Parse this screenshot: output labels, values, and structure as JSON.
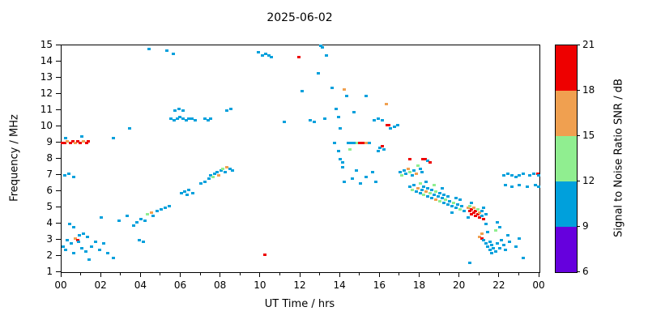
{
  "title": "2025-06-02",
  "chart_data": {
    "type": "scatter",
    "title": "2025-06-02",
    "xlabel": "UT Time / hrs",
    "ylabel": "Frequency / MHz",
    "xlim": [
      0,
      24
    ],
    "ylim": [
      1,
      15
    ],
    "grid": false,
    "x_ticks": {
      "values": [
        0,
        2,
        4,
        6,
        8,
        10,
        12,
        14,
        16,
        18,
        20,
        22,
        24
      ],
      "labels": [
        "00",
        "02",
        "04",
        "06",
        "08",
        "10",
        "12",
        "14",
        "16",
        "18",
        "20",
        "22",
        "00"
      ]
    },
    "y_ticks": [
      1,
      2,
      3,
      4,
      5,
      6,
      7,
      8,
      9,
      10,
      11,
      12,
      13,
      14,
      15
    ],
    "colorbar": {
      "label": "Signal to Noise Ratio SNR / dB",
      "tick_values": [
        6,
        9,
        12,
        15,
        18,
        21
      ],
      "range": [
        6,
        21
      ],
      "segments": [
        {
          "range": [
            6,
            9
          ],
          "color": "#6600DD"
        },
        {
          "range": [
            9,
            12
          ],
          "color": "#00A0DC"
        },
        {
          "range": [
            12,
            15
          ],
          "color": "#90EE90"
        },
        {
          "range": [
            15,
            18
          ],
          "color": "#F0A050"
        },
        {
          "range": [
            18,
            21
          ],
          "color": "#EE0000"
        }
      ]
    },
    "points": [
      [
        0.05,
        9.0,
        20
      ],
      [
        0.15,
        9.0,
        20
      ],
      [
        0.3,
        9.1,
        16
      ],
      [
        0.45,
        9.0,
        20
      ],
      [
        0.55,
        9.1,
        20
      ],
      [
        0.7,
        9.0,
        16
      ],
      [
        0.8,
        9.1,
        20
      ],
      [
        0.95,
        9.0,
        20
      ],
      [
        1.1,
        9.1,
        16
      ],
      [
        1.25,
        9.0,
        20
      ],
      [
        1.35,
        9.1,
        20
      ],
      [
        0.2,
        9.3,
        10
      ],
      [
        1.0,
        9.4,
        10
      ],
      [
        0.1,
        2.6,
        10
      ],
      [
        0.2,
        2.4,
        10
      ],
      [
        0.3,
        3.0,
        10
      ],
      [
        0.5,
        2.8,
        10
      ],
      [
        0.6,
        2.2,
        10
      ],
      [
        0.7,
        3.1,
        16
      ],
      [
        0.8,
        3.0,
        20
      ],
      [
        0.85,
        2.9,
        10
      ],
      [
        0.9,
        3.3,
        10
      ],
      [
        1.0,
        2.5,
        10
      ],
      [
        1.1,
        3.4,
        10
      ],
      [
        1.2,
        2.3,
        10
      ],
      [
        1.3,
        3.2,
        10
      ],
      [
        1.5,
        2.6,
        10
      ],
      [
        1.7,
        2.9,
        10
      ],
      [
        1.9,
        2.4,
        10
      ],
      [
        2.1,
        2.8,
        10
      ],
      [
        2.3,
        2.2,
        10
      ],
      [
        0.4,
        4.0,
        10
      ],
      [
        0.6,
        3.8,
        10
      ],
      [
        1.4,
        1.8,
        10
      ],
      [
        2.6,
        1.9,
        10
      ],
      [
        0.15,
        7.0,
        10
      ],
      [
        0.35,
        7.1,
        10
      ],
      [
        0.6,
        6.9,
        10
      ],
      [
        2.6,
        9.3,
        10
      ],
      [
        3.4,
        9.9,
        10
      ],
      [
        2.0,
        4.4,
        10
      ],
      [
        2.9,
        4.2,
        10
      ],
      [
        3.3,
        4.5,
        10
      ],
      [
        3.6,
        3.9,
        10
      ],
      [
        3.8,
        4.1,
        10
      ],
      [
        4.0,
        4.3,
        10
      ],
      [
        4.2,
        4.2,
        10
      ],
      [
        4.3,
        4.6,
        13
      ],
      [
        4.5,
        4.7,
        16
      ],
      [
        4.6,
        4.5,
        10
      ],
      [
        4.8,
        4.8,
        10
      ],
      [
        5.0,
        4.9,
        10
      ],
      [
        5.2,
        5.0,
        10
      ],
      [
        5.4,
        5.1,
        10
      ],
      [
        3.9,
        3.0,
        10
      ],
      [
        4.1,
        2.9,
        10
      ],
      [
        5.5,
        10.5,
        10
      ],
      [
        5.65,
        10.4,
        10
      ],
      [
        5.8,
        10.5,
        10
      ],
      [
        5.95,
        10.6,
        10
      ],
      [
        6.1,
        10.5,
        10
      ],
      [
        6.25,
        10.4,
        10
      ],
      [
        6.4,
        10.5,
        10
      ],
      [
        6.55,
        10.5,
        10
      ],
      [
        6.7,
        10.4,
        10
      ],
      [
        7.2,
        10.5,
        10
      ],
      [
        7.35,
        10.4,
        10
      ],
      [
        7.5,
        10.5,
        10
      ],
      [
        5.7,
        11.0,
        10
      ],
      [
        5.9,
        11.1,
        10
      ],
      [
        6.1,
        11.0,
        10
      ],
      [
        5.3,
        14.7,
        10
      ],
      [
        5.6,
        14.5,
        10
      ],
      [
        4.4,
        14.8,
        10
      ],
      [
        6.0,
        5.9,
        10
      ],
      [
        6.2,
        6.0,
        10
      ],
      [
        6.4,
        6.1,
        10
      ],
      [
        6.6,
        5.9,
        10
      ],
      [
        6.3,
        5.8,
        10
      ],
      [
        7.0,
        6.5,
        10
      ],
      [
        7.2,
        6.6,
        10
      ],
      [
        7.4,
        6.8,
        10
      ],
      [
        7.5,
        7.0,
        10
      ],
      [
        7.6,
        6.9,
        13
      ],
      [
        7.7,
        7.1,
        10
      ],
      [
        7.8,
        7.2,
        10
      ],
      [
        7.9,
        7.0,
        16
      ],
      [
        8.0,
        7.3,
        10
      ],
      [
        8.1,
        7.4,
        13
      ],
      [
        8.2,
        7.2,
        10
      ],
      [
        8.3,
        7.5,
        16
      ],
      [
        8.45,
        7.4,
        10
      ],
      [
        8.6,
        7.3,
        10
      ],
      [
        8.3,
        11.0,
        10
      ],
      [
        8.5,
        11.1,
        10
      ],
      [
        9.9,
        14.6,
        10
      ],
      [
        10.1,
        14.4,
        10
      ],
      [
        10.25,
        14.5,
        10
      ],
      [
        10.4,
        14.4,
        10
      ],
      [
        10.55,
        14.3,
        10
      ],
      [
        11.9,
        14.3,
        20
      ],
      [
        10.2,
        2.1,
        20
      ],
      [
        11.2,
        10.3,
        10
      ],
      [
        12.1,
        12.2,
        10
      ],
      [
        12.5,
        10.4,
        10
      ],
      [
        12.7,
        10.3,
        10
      ],
      [
        13.0,
        15.0,
        10
      ],
      [
        13.1,
        14.9,
        10
      ],
      [
        13.3,
        14.4,
        10
      ],
      [
        12.9,
        13.3,
        10
      ],
      [
        13.2,
        10.5,
        10
      ],
      [
        13.6,
        12.4,
        10
      ],
      [
        13.8,
        11.1,
        10
      ],
      [
        13.9,
        10.6,
        10
      ],
      [
        14.0,
        9.9,
        10
      ],
      [
        14.0,
        8.0,
        10
      ],
      [
        14.1,
        7.8,
        10
      ],
      [
        14.1,
        7.5,
        10
      ],
      [
        14.2,
        12.3,
        16
      ],
      [
        14.3,
        11.9,
        10
      ],
      [
        13.7,
        9.0,
        10
      ],
      [
        13.9,
        8.5,
        10
      ],
      [
        14.7,
        10.9,
        10
      ],
      [
        15.3,
        11.9,
        10
      ],
      [
        14.4,
        9.0,
        10
      ],
      [
        14.55,
        9.0,
        10
      ],
      [
        14.7,
        9.0,
        10
      ],
      [
        14.85,
        9.0,
        13
      ],
      [
        14.95,
        9.0,
        20
      ],
      [
        15.05,
        9.0,
        20
      ],
      [
        15.15,
        9.0,
        20
      ],
      [
        15.3,
        9.0,
        16
      ],
      [
        15.45,
        9.0,
        10
      ],
      [
        14.5,
        8.6,
        13
      ],
      [
        14.2,
        6.6,
        10
      ],
      [
        14.6,
        6.8,
        10
      ],
      [
        15.0,
        6.5,
        10
      ],
      [
        15.3,
        6.9,
        10
      ],
      [
        15.8,
        6.6,
        10
      ],
      [
        14.8,
        7.3,
        10
      ],
      [
        15.6,
        7.2,
        10
      ],
      [
        15.7,
        10.4,
        10
      ],
      [
        15.9,
        10.5,
        10
      ],
      [
        16.1,
        10.4,
        10
      ],
      [
        16.35,
        10.1,
        20
      ],
      [
        16.45,
        10.1,
        20
      ],
      [
        16.0,
        8.7,
        10
      ],
      [
        16.1,
        8.8,
        20
      ],
      [
        16.2,
        8.6,
        10
      ],
      [
        15.9,
        8.5,
        10
      ],
      [
        16.5,
        9.9,
        10
      ],
      [
        16.7,
        10.0,
        10
      ],
      [
        16.9,
        10.1,
        10
      ],
      [
        16.3,
        11.4,
        16
      ],
      [
        17.0,
        7.2,
        10
      ],
      [
        17.1,
        7.0,
        13
      ],
      [
        17.2,
        7.3,
        10
      ],
      [
        17.3,
        7.1,
        10
      ],
      [
        17.4,
        7.4,
        16
      ],
      [
        17.5,
        8.0,
        20
      ],
      [
        17.5,
        7.2,
        13
      ],
      [
        17.6,
        7.0,
        10
      ],
      [
        17.7,
        7.3,
        10
      ],
      [
        17.8,
        7.1,
        16
      ],
      [
        18.0,
        7.4,
        10
      ],
      [
        18.15,
        8.0,
        20
      ],
      [
        18.25,
        8.0,
        20
      ],
      [
        18.4,
        7.9,
        10
      ],
      [
        18.5,
        7.8,
        20
      ],
      [
        17.9,
        7.6,
        13
      ],
      [
        18.1,
        7.2,
        10
      ],
      [
        17.5,
        6.3,
        10
      ],
      [
        17.6,
        6.1,
        13
      ],
      [
        17.7,
        6.4,
        10
      ],
      [
        17.8,
        6.0,
        10
      ],
      [
        17.9,
        6.2,
        16
      ],
      [
        18.0,
        5.9,
        10
      ],
      [
        18.0,
        6.5,
        13
      ],
      [
        18.1,
        6.1,
        10
      ],
      [
        18.2,
        6.3,
        10
      ],
      [
        18.2,
        5.8,
        13
      ],
      [
        18.3,
        6.0,
        16
      ],
      [
        18.4,
        6.2,
        10
      ],
      [
        18.4,
        5.7,
        10
      ],
      [
        18.5,
        5.9,
        13
      ],
      [
        18.6,
        6.1,
        10
      ],
      [
        18.6,
        5.6,
        10
      ],
      [
        18.7,
        5.8,
        10
      ],
      [
        18.8,
        6.0,
        13
      ],
      [
        18.8,
        5.5,
        16
      ],
      [
        18.9,
        5.7,
        10
      ],
      [
        19.0,
        5.9,
        10
      ],
      [
        19.0,
        5.4,
        13
      ],
      [
        19.1,
        5.6,
        10
      ],
      [
        19.2,
        5.8,
        10
      ],
      [
        19.2,
        5.3,
        10
      ],
      [
        19.3,
        5.5,
        13
      ],
      [
        19.4,
        5.7,
        10
      ],
      [
        19.4,
        5.2,
        10
      ],
      [
        19.5,
        5.4,
        10
      ],
      [
        18.3,
        6.6,
        10
      ],
      [
        18.7,
        6.4,
        13
      ],
      [
        19.1,
        6.2,
        10
      ],
      [
        19.6,
        5.1,
        10
      ],
      [
        19.7,
        5.3,
        13
      ],
      [
        19.8,
        5.0,
        10
      ],
      [
        19.9,
        5.2,
        10
      ],
      [
        20.0,
        4.9,
        13
      ],
      [
        20.1,
        5.1,
        10
      ],
      [
        20.2,
        4.8,
        10
      ],
      [
        19.8,
        5.6,
        10
      ],
      [
        20.0,
        5.5,
        10
      ],
      [
        19.6,
        4.7,
        10
      ],
      [
        20.4,
        5.0,
        16
      ],
      [
        20.5,
        4.8,
        20
      ],
      [
        20.5,
        5.1,
        13
      ],
      [
        20.6,
        4.6,
        20
      ],
      [
        20.6,
        4.9,
        20
      ],
      [
        20.7,
        4.7,
        20
      ],
      [
        20.7,
        5.0,
        16
      ],
      [
        20.8,
        4.5,
        20
      ],
      [
        20.8,
        4.8,
        20
      ],
      [
        20.9,
        4.6,
        20
      ],
      [
        20.9,
        4.9,
        13
      ],
      [
        21.0,
        4.4,
        20
      ],
      [
        21.0,
        4.7,
        16
      ],
      [
        21.1,
        4.5,
        10
      ],
      [
        21.1,
        4.8,
        10
      ],
      [
        21.2,
        4.3,
        20
      ],
      [
        20.4,
        4.4,
        10
      ],
      [
        21.3,
        4.6,
        10
      ],
      [
        21.2,
        5.0,
        10
      ],
      [
        20.6,
        5.3,
        10
      ],
      [
        21.0,
        3.2,
        16
      ],
      [
        21.1,
        3.1,
        20
      ],
      [
        21.1,
        3.4,
        16
      ],
      [
        21.2,
        3.0,
        10
      ],
      [
        21.3,
        2.8,
        10
      ],
      [
        21.4,
        2.6,
        10
      ],
      [
        21.5,
        2.4,
        10
      ],
      [
        21.5,
        2.9,
        10
      ],
      [
        21.6,
        2.2,
        10
      ],
      [
        21.6,
        2.7,
        10
      ],
      [
        21.7,
        2.5,
        10
      ],
      [
        21.8,
        2.3,
        10
      ],
      [
        21.9,
        2.8,
        10
      ],
      [
        22.0,
        2.5,
        10
      ],
      [
        22.1,
        3.0,
        10
      ],
      [
        22.2,
        2.7,
        10
      ],
      [
        21.4,
        3.5,
        10
      ],
      [
        21.8,
        3.6,
        13
      ],
      [
        22.0,
        3.8,
        10
      ],
      [
        22.3,
        2.4,
        10
      ],
      [
        22.5,
        2.9,
        10
      ],
      [
        21.3,
        4.0,
        10
      ],
      [
        21.9,
        4.1,
        10
      ],
      [
        22.4,
        3.3,
        10
      ],
      [
        20.5,
        1.6,
        10
      ],
      [
        23.2,
        1.9,
        10
      ],
      [
        22.8,
        2.6,
        10
      ],
      [
        23.0,
        3.1,
        10
      ],
      [
        22.2,
        7.0,
        10
      ],
      [
        22.4,
        7.1,
        10
      ],
      [
        22.6,
        7.0,
        10
      ],
      [
        22.8,
        6.9,
        10
      ],
      [
        23.0,
        7.0,
        10
      ],
      [
        23.2,
        7.1,
        10
      ],
      [
        23.5,
        7.0,
        10
      ],
      [
        23.7,
        7.1,
        10
      ],
      [
        23.9,
        7.1,
        20
      ],
      [
        23.95,
        7.0,
        10
      ],
      [
        22.3,
        6.4,
        10
      ],
      [
        22.6,
        6.3,
        10
      ],
      [
        23.0,
        6.4,
        10
      ],
      [
        23.4,
        6.3,
        10
      ],
      [
        23.8,
        6.4,
        10
      ],
      [
        23.95,
        6.3,
        10
      ]
    ]
  }
}
